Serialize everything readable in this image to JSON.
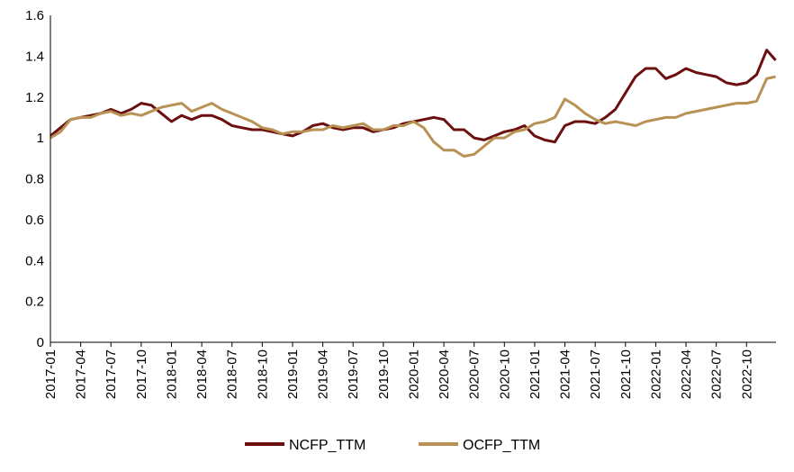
{
  "chart_data": {
    "type": "line",
    "title": "",
    "xlabel": "",
    "ylabel": "",
    "ylim": [
      0,
      1.6
    ],
    "yticks": [
      "0",
      "0.2",
      "0.4",
      "0.6",
      "0.8",
      "1",
      "1.2",
      "1.4",
      "1.6"
    ],
    "xticks": [
      "2017-01",
      "2017-04",
      "2017-07",
      "2017-10",
      "2018-01",
      "2018-04",
      "2018-07",
      "2018-10",
      "2019-01",
      "2019-04",
      "2019-07",
      "2019-10",
      "2020-01",
      "2020-04",
      "2020-07",
      "2020-10",
      "2021-01",
      "2021-04",
      "2021-07",
      "2021-10",
      "2022-01",
      "2022-04",
      "2022-07",
      "2022-10"
    ],
    "xrange": [
      "2017-01",
      "2022-12"
    ],
    "grid": false,
    "legend_position": "bottom",
    "series": [
      {
        "name": "NCFP_TTM",
        "color": "#6b0f0f",
        "points": [
          [
            "2017-01",
            1.01
          ],
          [
            "2017-02",
            1.05
          ],
          [
            "2017-03",
            1.09
          ],
          [
            "2017-04",
            1.1
          ],
          [
            "2017-05",
            1.11
          ],
          [
            "2017-06",
            1.12
          ],
          [
            "2017-07",
            1.14
          ],
          [
            "2017-08",
            1.12
          ],
          [
            "2017-09",
            1.14
          ],
          [
            "2017-10",
            1.17
          ],
          [
            "2017-11",
            1.16
          ],
          [
            "2017-12",
            1.12
          ],
          [
            "2018-01",
            1.08
          ],
          [
            "2018-02",
            1.11
          ],
          [
            "2018-03",
            1.09
          ],
          [
            "2018-04",
            1.11
          ],
          [
            "2018-05",
            1.11
          ],
          [
            "2018-06",
            1.09
          ],
          [
            "2018-07",
            1.06
          ],
          [
            "2018-08",
            1.05
          ],
          [
            "2018-09",
            1.04
          ],
          [
            "2018-10",
            1.04
          ],
          [
            "2018-11",
            1.03
          ],
          [
            "2018-12",
            1.02
          ],
          [
            "2019-01",
            1.01
          ],
          [
            "2019-02",
            1.03
          ],
          [
            "2019-03",
            1.06
          ],
          [
            "2019-04",
            1.07
          ],
          [
            "2019-05",
            1.05
          ],
          [
            "2019-06",
            1.04
          ],
          [
            "2019-07",
            1.05
          ],
          [
            "2019-08",
            1.05
          ],
          [
            "2019-09",
            1.03
          ],
          [
            "2019-10",
            1.04
          ],
          [
            "2019-11",
            1.05
          ],
          [
            "2019-12",
            1.07
          ],
          [
            "2020-01",
            1.08
          ],
          [
            "2020-02",
            1.09
          ],
          [
            "2020-03",
            1.1
          ],
          [
            "2020-04",
            1.09
          ],
          [
            "2020-05",
            1.04
          ],
          [
            "2020-06",
            1.04
          ],
          [
            "2020-07",
            1.0
          ],
          [
            "2020-08",
            0.99
          ],
          [
            "2020-09",
            1.01
          ],
          [
            "2020-10",
            1.03
          ],
          [
            "2020-11",
            1.04
          ],
          [
            "2020-12",
            1.06
          ],
          [
            "2021-01",
            1.01
          ],
          [
            "2021-02",
            0.99
          ],
          [
            "2021-03",
            0.98
          ],
          [
            "2021-04",
            1.06
          ],
          [
            "2021-05",
            1.08
          ],
          [
            "2021-06",
            1.08
          ],
          [
            "2021-07",
            1.07
          ],
          [
            "2021-08",
            1.1
          ],
          [
            "2021-09",
            1.14
          ],
          [
            "2021-10",
            1.22
          ],
          [
            "2021-11",
            1.3
          ],
          [
            "2021-12",
            1.34
          ],
          [
            "2022-01",
            1.34
          ],
          [
            "2022-02",
            1.29
          ],
          [
            "2022-03",
            1.31
          ],
          [
            "2022-04",
            1.34
          ],
          [
            "2022-05",
            1.32
          ],
          [
            "2022-06",
            1.31
          ],
          [
            "2022-07",
            1.3
          ],
          [
            "2022-08",
            1.27
          ],
          [
            "2022-09",
            1.26
          ],
          [
            "2022-10",
            1.27
          ],
          [
            "2022-11",
            1.31
          ],
          [
            "2022-12",
            1.43
          ],
          [
            "2022-12-28",
            1.38
          ]
        ]
      },
      {
        "name": "OCFP_TTM",
        "color": "#b89254",
        "points": [
          [
            "2017-01",
            1.0
          ],
          [
            "2017-02",
            1.03
          ],
          [
            "2017-03",
            1.09
          ],
          [
            "2017-04",
            1.1
          ],
          [
            "2017-05",
            1.1
          ],
          [
            "2017-06",
            1.12
          ],
          [
            "2017-07",
            1.13
          ],
          [
            "2017-08",
            1.11
          ],
          [
            "2017-09",
            1.12
          ],
          [
            "2017-10",
            1.11
          ],
          [
            "2017-11",
            1.13
          ],
          [
            "2017-12",
            1.15
          ],
          [
            "2018-01",
            1.16
          ],
          [
            "2018-02",
            1.17
          ],
          [
            "2018-03",
            1.13
          ],
          [
            "2018-04",
            1.15
          ],
          [
            "2018-05",
            1.17
          ],
          [
            "2018-06",
            1.14
          ],
          [
            "2018-07",
            1.12
          ],
          [
            "2018-08",
            1.1
          ],
          [
            "2018-09",
            1.08
          ],
          [
            "2018-10",
            1.05
          ],
          [
            "2018-11",
            1.04
          ],
          [
            "2018-12",
            1.02
          ],
          [
            "2019-01",
            1.03
          ],
          [
            "2019-02",
            1.03
          ],
          [
            "2019-03",
            1.04
          ],
          [
            "2019-04",
            1.04
          ],
          [
            "2019-05",
            1.06
          ],
          [
            "2019-06",
            1.05
          ],
          [
            "2019-07",
            1.06
          ],
          [
            "2019-08",
            1.07
          ],
          [
            "2019-09",
            1.04
          ],
          [
            "2019-10",
            1.04
          ],
          [
            "2019-11",
            1.06
          ],
          [
            "2019-12",
            1.06
          ],
          [
            "2020-01",
            1.08
          ],
          [
            "2020-02",
            1.05
          ],
          [
            "2020-03",
            0.98
          ],
          [
            "2020-04",
            0.94
          ],
          [
            "2020-05",
            0.94
          ],
          [
            "2020-06",
            0.91
          ],
          [
            "2020-07",
            0.92
          ],
          [
            "2020-08",
            0.96
          ],
          [
            "2020-09",
            1.0
          ],
          [
            "2020-10",
            1.0
          ],
          [
            "2020-11",
            1.03
          ],
          [
            "2020-12",
            1.04
          ],
          [
            "2021-01",
            1.07
          ],
          [
            "2021-02",
            1.08
          ],
          [
            "2021-03",
            1.1
          ],
          [
            "2021-04",
            1.19
          ],
          [
            "2021-05",
            1.16
          ],
          [
            "2021-06",
            1.12
          ],
          [
            "2021-07",
            1.09
          ],
          [
            "2021-08",
            1.07
          ],
          [
            "2021-09",
            1.08
          ],
          [
            "2021-10",
            1.07
          ],
          [
            "2021-11",
            1.06
          ],
          [
            "2021-12",
            1.08
          ],
          [
            "2022-01",
            1.09
          ],
          [
            "2022-02",
            1.1
          ],
          [
            "2022-03",
            1.1
          ],
          [
            "2022-04",
            1.12
          ],
          [
            "2022-05",
            1.13
          ],
          [
            "2022-06",
            1.14
          ],
          [
            "2022-07",
            1.15
          ],
          [
            "2022-08",
            1.16
          ],
          [
            "2022-09",
            1.17
          ],
          [
            "2022-10",
            1.17
          ],
          [
            "2022-11",
            1.18
          ],
          [
            "2022-12",
            1.29
          ],
          [
            "2022-12-28",
            1.3
          ]
        ]
      }
    ]
  }
}
